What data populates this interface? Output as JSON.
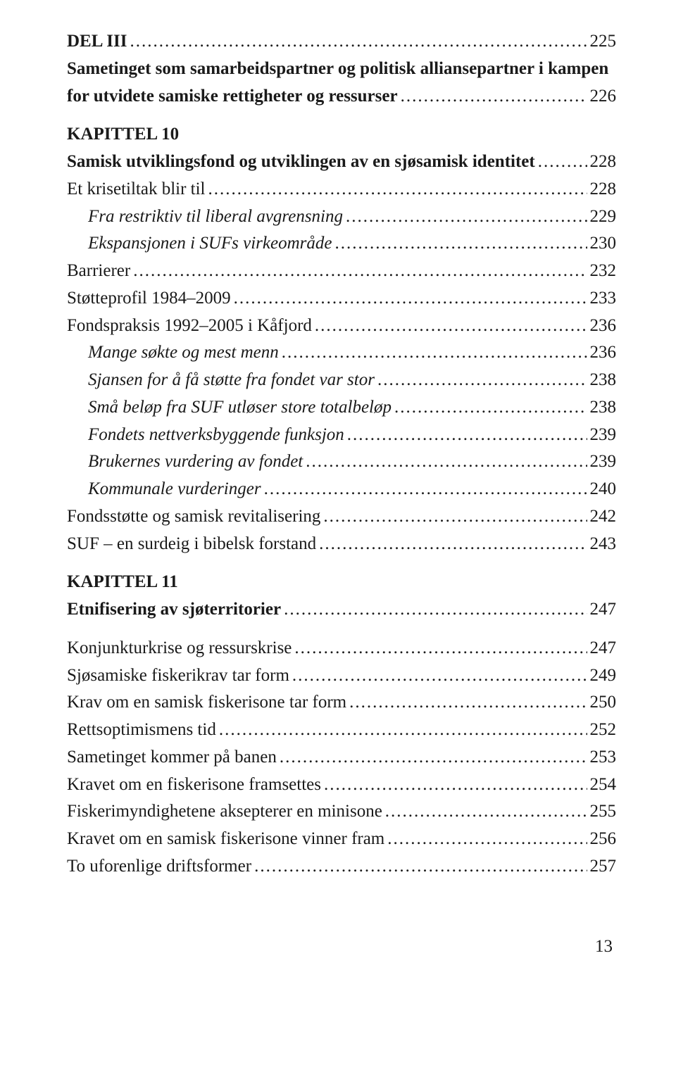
{
  "entries": [
    {
      "type": "entry",
      "label": "DEL III",
      "page": "225",
      "bold": true,
      "italic": false,
      "indent": 0
    },
    {
      "type": "multiline",
      "bold": true,
      "lines": [
        "Sametinget som samarbeidspartner og politisk alliansepartner i kampen",
        "for utvidete samiske rettigheter og ressurser"
      ],
      "page": "226"
    },
    {
      "type": "spacer"
    },
    {
      "type": "kapittel",
      "label": "KAPITTEL 10"
    },
    {
      "type": "entry",
      "label": "Samisk utviklingsfond og utviklingen av en sjøsamisk identitet",
      "page": "228",
      "bold": true,
      "italic": false,
      "indent": 0
    },
    {
      "type": "entry",
      "label": "Et krisetiltak blir til",
      "page": "228",
      "bold": false,
      "italic": false,
      "indent": 0
    },
    {
      "type": "entry",
      "label": "Fra restriktiv til liberal avgrensning",
      "page": "229",
      "bold": false,
      "italic": true,
      "indent": 1
    },
    {
      "type": "entry",
      "label": "Ekspansjonen i SUFs virkeområde",
      "page": "230",
      "bold": false,
      "italic": true,
      "indent": 1
    },
    {
      "type": "entry",
      "label": "Barrierer",
      "page": "232",
      "bold": false,
      "italic": false,
      "indent": 0
    },
    {
      "type": "entry",
      "label": "Støtteprofil 1984–2009",
      "page": "233",
      "bold": false,
      "italic": false,
      "indent": 0
    },
    {
      "type": "entry",
      "label": "Fondspraksis 1992–2005 i Kåfjord",
      "page": "236",
      "bold": false,
      "italic": false,
      "indent": 0
    },
    {
      "type": "entry",
      "label": "Mange søkte og mest menn",
      "page": "236",
      "bold": false,
      "italic": true,
      "indent": 1
    },
    {
      "type": "entry",
      "label": "Sjansen for å få støtte fra fondet var stor",
      "page": "238",
      "bold": false,
      "italic": true,
      "indent": 1
    },
    {
      "type": "entry",
      "label": "Små beløp fra SUF utløser store totalbeløp",
      "page": "238",
      "bold": false,
      "italic": true,
      "indent": 1
    },
    {
      "type": "entry",
      "label": "Fondets nettverksbyggende funksjon",
      "page": "239",
      "bold": false,
      "italic": true,
      "indent": 1
    },
    {
      "type": "entry",
      "label": "Brukernes vurdering av fondet",
      "page": "239",
      "bold": false,
      "italic": true,
      "indent": 1
    },
    {
      "type": "entry",
      "label": "Kommunale vurderinger",
      "page": "240",
      "bold": false,
      "italic": true,
      "indent": 1
    },
    {
      "type": "entry",
      "label": "Fondsstøtte og samisk revitalisering",
      "page": "242",
      "bold": false,
      "italic": false,
      "indent": 0
    },
    {
      "type": "entry",
      "label": "SUF – en surdeig i bibelsk forstand",
      "page": "243",
      "bold": false,
      "italic": false,
      "indent": 0
    },
    {
      "type": "spacer"
    },
    {
      "type": "kapittel",
      "label": "KAPITTEL 11"
    },
    {
      "type": "entry",
      "label": "Etnifisering av sjøterritorier",
      "page": "247",
      "bold": true,
      "italic": false,
      "indent": 0
    },
    {
      "type": "spacer"
    },
    {
      "type": "entry",
      "label": "Konjunkturkrise og ressurskrise",
      "page": "247",
      "bold": false,
      "italic": false,
      "indent": 0
    },
    {
      "type": "entry",
      "label": "Sjøsamiske fiskerikrav tar form",
      "page": "249",
      "bold": false,
      "italic": false,
      "indent": 0
    },
    {
      "type": "entry",
      "label": "Krav om en samisk fiskerisone tar form",
      "page": "250",
      "bold": false,
      "italic": false,
      "indent": 0
    },
    {
      "type": "entry",
      "label": "Rettsoptimismens tid",
      "page": "252",
      "bold": false,
      "italic": false,
      "indent": 0
    },
    {
      "type": "entry",
      "label": "Sametinget kommer på banen",
      "page": "253",
      "bold": false,
      "italic": false,
      "indent": 0
    },
    {
      "type": "entry",
      "label": "Kravet om en fiskerisone framsettes",
      "page": "254",
      "bold": false,
      "italic": false,
      "indent": 0
    },
    {
      "type": "entry",
      "label": "Fiskerimyndighetene aksepterer en minisone",
      "page": "255",
      "bold": false,
      "italic": false,
      "indent": 0
    },
    {
      "type": "entry",
      "label": "Kravet om en samisk fiskerisone vinner fram",
      "page": "256",
      "bold": false,
      "italic": false,
      "indent": 0
    },
    {
      "type": "entry",
      "label": "To uforenlige driftsformer",
      "page": "257",
      "bold": false,
      "italic": false,
      "indent": 0
    }
  ],
  "footer_page": "13"
}
